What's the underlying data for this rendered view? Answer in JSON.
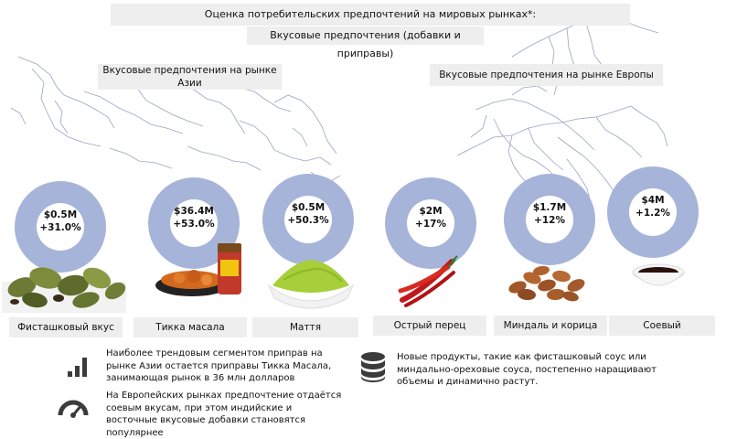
{
  "header": {
    "title": "Оценка потребительских предпочтений на мировых рынках*:",
    "subtitle": "Вкусовые предпочтения (добавки и приправы)"
  },
  "regions": {
    "asia_label": "Вкусовые предпочтения на рынке Азии",
    "europe_label": "Вкусовые предпочтения на рынке Европы"
  },
  "items": [
    {
      "value": "$0.5M",
      "growth": "+31.0%",
      "label": "Фисташковый вкус",
      "icon": "cardamom-pods"
    },
    {
      "value": "$36.4M",
      "growth": "+53.0%",
      "label": "Тикка масала",
      "icon": "tikka-masala-dish-and-jar"
    },
    {
      "value": "$0.5M",
      "growth": "+50.3%",
      "label": "Маття",
      "icon": "matcha-powder"
    },
    {
      "value": "$2M",
      "growth": "+17%",
      "label": "Острый перец",
      "icon": "red-chili-peppers"
    },
    {
      "value": "$1.7M",
      "growth": "+12%",
      "label": "Миндаль и корица",
      "icon": "almonds"
    },
    {
      "value": "$4M",
      "growth": "+1.2%",
      "label": "Соевый",
      "icon": "soy-sauce-bowl"
    }
  ],
  "notes": {
    "asia_trend": "Наиболее трендовым сегментом приправ на рынке Азии остается приправы Тикка Масала, занимающая рынок в 36 млн долларов",
    "europe_trend": "На Европейских рынках предпочтение отдаётся соевым вкусам, при этом индийские и восточные вкусовые добавки становятся популярнее",
    "new_products": "Новые продукты, такие как фисташковый соус или миндально-ореховые соуса, постепенно наращивают объемы и динамично растут."
  },
  "colors": {
    "donut": "#a7b4d9",
    "label_bg": "#eeeeee",
    "icon": "#3b3b3b",
    "map_outline": "#9aa3c4"
  }
}
